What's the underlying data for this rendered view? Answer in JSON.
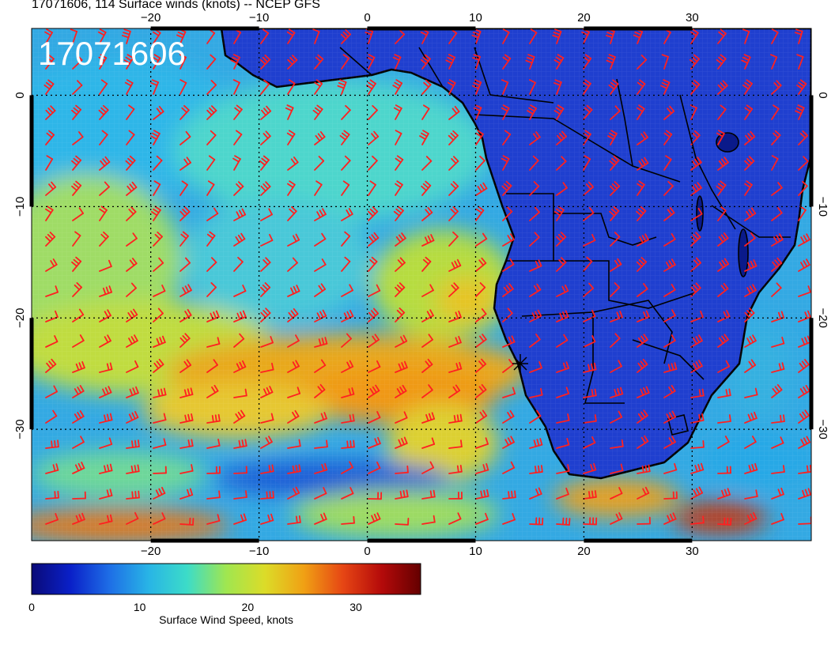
{
  "title": "17071606, 114 Surface winds (knots) -- NCEP GFS",
  "stamp": "17071606",
  "map": {
    "region": "Southeast Atlantic and Southern Africa",
    "lon_range": [
      -31,
      41
    ],
    "lat_range": [
      -40,
      6
    ],
    "x_ticks": [
      -20,
      -10,
      0,
      10,
      20,
      30
    ],
    "y_ticks": [
      0,
      -10,
      -20,
      -30
    ],
    "gridlines": "dotted",
    "wind_vector_color": "#ff2020",
    "coastline_color": "#000000",
    "marker": {
      "lon": 14.5,
      "lat": -22.9,
      "symbol": "star"
    }
  },
  "colorbar": {
    "label": "Surface Wind Speed, knots",
    "ticks": [
      0,
      10,
      20,
      30
    ],
    "range": [
      0,
      36
    ],
    "colors": [
      "#0a0a78",
      "#0a20c8",
      "#1e6ee6",
      "#28b4e6",
      "#3cdcc8",
      "#a0e650",
      "#dcdc28",
      "#f0a014",
      "#e64614",
      "#b40a0a",
      "#640000"
    ]
  }
}
